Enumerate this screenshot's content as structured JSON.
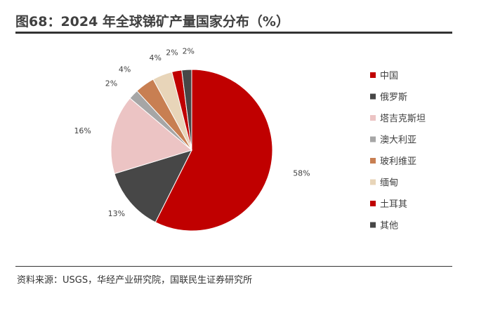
{
  "title": "图68：2024 年全球锑矿产量国家分布（%）",
  "source": "资料来源：USGS，华经产业研究院，国联民生证券研究所",
  "chart_data": {
    "type": "pie",
    "title": "图68：2024 年全球锑矿产量国家分布（%）",
    "legend_position": "right",
    "slices": [
      {
        "name": "中国",
        "value": 58,
        "label": "58%",
        "color": "#C00000"
      },
      {
        "name": "俄罗斯",
        "value": 13,
        "label": "13%",
        "color": "#474747"
      },
      {
        "name": "塔吉克斯坦",
        "value": 16,
        "label": "16%",
        "color": "#ECC4C4"
      },
      {
        "name": "澳大利亚",
        "value": 2,
        "label": "2%",
        "color": "#A6A6A6"
      },
      {
        "name": "玻利维亚",
        "value": 4,
        "label": "4%",
        "color": "#C87F52"
      },
      {
        "name": "缅甸",
        "value": 4,
        "label": "4%",
        "color": "#E8D5B9"
      },
      {
        "name": "土耳其",
        "value": 2,
        "label": "2%",
        "color": "#C00000"
      },
      {
        "name": "其他",
        "value": 2,
        "label": "2%",
        "color": "#474747"
      }
    ]
  }
}
